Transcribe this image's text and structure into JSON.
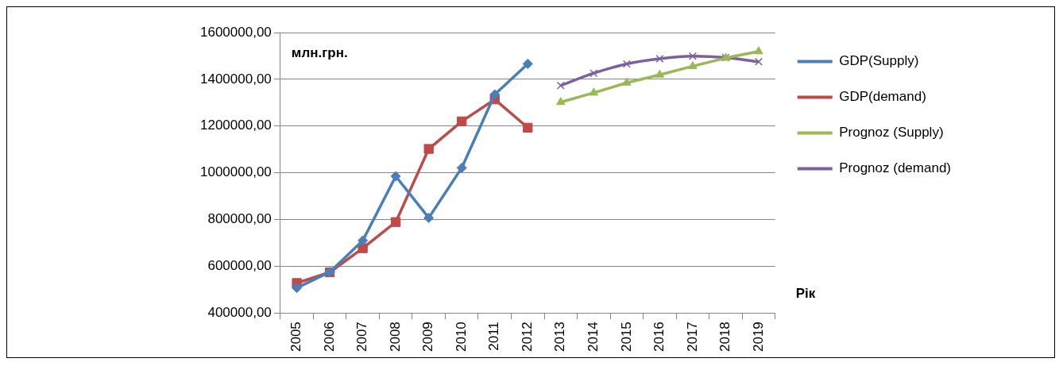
{
  "chart_data": {
    "type": "line",
    "ylabel": "млн.грн.",
    "xlabel": "Рік",
    "categories": [
      "2005",
      "2006",
      "2007",
      "2008",
      "2009",
      "2010",
      "2011",
      "2012",
      "2013",
      "2014",
      "2015",
      "2016",
      "2017",
      "2018",
      "2019"
    ],
    "series": [
      {
        "name": "GDP(Supply)",
        "color": "#4a7ebb",
        "marker": "diamond",
        "values": [
          507000,
          575000,
          710000,
          985000,
          807000,
          1021000,
          1335000,
          1466000,
          null,
          null,
          null,
          null,
          null,
          null,
          null
        ]
      },
      {
        "name": "GDP(demand)",
        "color": "#be4b48",
        "marker": "square",
        "values": [
          528000,
          574000,
          677000,
          789000,
          1102000,
          1220000,
          1314000,
          1193000,
          null,
          null,
          null,
          null,
          null,
          null,
          null
        ]
      },
      {
        "name": "Prognoz (Supply)",
        "color": "#98b954",
        "marker": "triangle",
        "values": [
          null,
          null,
          null,
          null,
          null,
          null,
          null,
          null,
          1302000,
          1342000,
          1385000,
          1419000,
          1456000,
          1491000,
          1519000
        ]
      },
      {
        "name": "Prognoz (demand)",
        "color": "#7d60a0",
        "marker": "cross",
        "values": [
          null,
          null,
          null,
          null,
          null,
          null,
          null,
          null,
          1373000,
          1426000,
          1466000,
          1488000,
          1499000,
          1493000,
          1475000
        ]
      }
    ],
    "ylim": [
      400000,
      1600000
    ],
    "yticks": [
      {
        "value": 400000,
        "label": "400000,00"
      },
      {
        "value": 600000,
        "label": "600000,00"
      },
      {
        "value": 800000,
        "label": "800000,00"
      },
      {
        "value": 1000000,
        "label": "1000000,00"
      },
      {
        "value": 1200000,
        "label": "1200000,00"
      },
      {
        "value": 1400000,
        "label": "1400000,00"
      },
      {
        "value": 1600000,
        "label": "1600000,00"
      }
    ],
    "grid": "y",
    "legend": "right"
  }
}
